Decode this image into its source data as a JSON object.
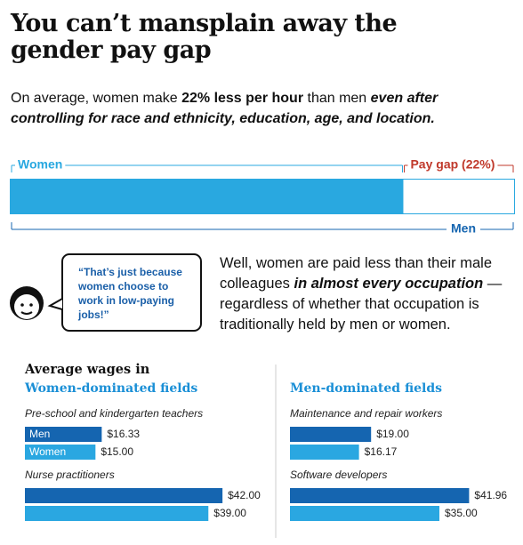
{
  "title": "You can’t mansplain away the gender pay gap",
  "subtitle": [
    {
      "text": "On average, women make "
    },
    {
      "text": "22% less per hour",
      "style": "b"
    },
    {
      "text": " than men "
    },
    {
      "text": "even after controlling for race and ethnicity, education, age, and location.",
      "style": "bi"
    }
  ],
  "quote": "“That’s just because women choose to work in low-paying jobs!”",
  "paragraph": [
    {
      "text": "Well, women are paid less than their male colleagues "
    },
    {
      "text": "in almost every occupation",
      "style": "bi"
    },
    {
      "text": " —regardless of whether that occupation is traditionally held by men or women."
    }
  ],
  "wages_heading": "Average wages in",
  "chart_data": [
    {
      "type": "stacked-bar",
      "xlim": [
        0,
        100
      ],
      "total_label": "Men",
      "series": [
        {
          "name": "Women",
          "color": "#29a8e0",
          "values": [
            78
          ]
        },
        {
          "name": "Pay gap (22%)",
          "color": "#ffffff",
          "label_color": "#c0392b",
          "values": [
            22
          ]
        }
      ]
    },
    {
      "type": "grouped-bar",
      "title": "Women-dominated fields",
      "xlim": [
        0,
        45
      ],
      "categories": [
        "Pre-school and kindergarten teachers",
        "Nurse practitioners"
      ],
      "series": [
        {
          "name": "Men",
          "color": "#1565b0",
          "values": [
            16.33,
            42.0
          ],
          "value_labels": [
            "$16.33",
            "$42.00"
          ]
        },
        {
          "name": "Women",
          "color": "#2aa7e1",
          "values": [
            15.0,
            39.0
          ],
          "value_labels": [
            "$15.00",
            "$39.00"
          ]
        }
      ]
    },
    {
      "type": "grouped-bar",
      "title": "Men-dominated fields",
      "xlim": [
        0,
        45
      ],
      "categories": [
        "Maintenance and repair workers",
        "Software developers"
      ],
      "series": [
        {
          "color": "#1565b0",
          "values": [
            19.0,
            41.96
          ],
          "value_labels": [
            "$19.00",
            "$41.96"
          ]
        },
        {
          "color": "#2aa7e1",
          "values": [
            16.17,
            35.0
          ],
          "value_labels": [
            "$16.17",
            "$35.00"
          ]
        }
      ]
    }
  ]
}
